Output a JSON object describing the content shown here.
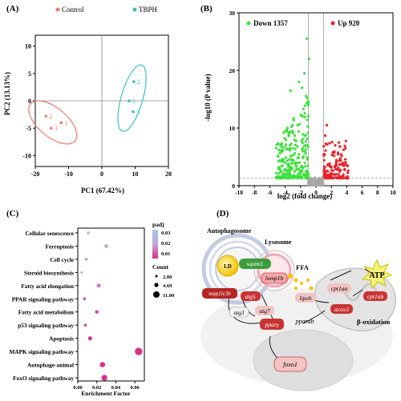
{
  "panels": {
    "a": "(A)",
    "b": "(B)",
    "c": "(C)",
    "d": "(D)"
  },
  "colors": {
    "control": "#f0796e",
    "tbph": "#3ebfbf",
    "down": "#3ce03c",
    "up": "#e8222a",
    "gray": "#a6a6a6"
  },
  "chart_data": [
    {
      "type": "scatter",
      "panel": "A",
      "xlabel": "PC1 (67.42%)",
      "ylabel": "PC2 (13.13%)",
      "xlim": [
        -20,
        20
      ],
      "ylim": [
        -12,
        12
      ],
      "xticks": [
        -20,
        -10,
        0,
        10,
        20
      ],
      "yticks": [
        -10,
        -5,
        0,
        5,
        10
      ],
      "legend_position": "top",
      "series": [
        {
          "name": "Control",
          "color": "#f0796e",
          "points": [
            {
              "label": "1",
              "x": -12.2,
              "y": -4.0
            },
            {
              "label": "2",
              "x": -16.8,
              "y": -2.8
            },
            {
              "label": "3",
              "x": -15.2,
              "y": -5.0
            }
          ]
        },
        {
          "name": "TBPH",
          "color": "#3ebfbf",
          "points": [
            {
              "label": "1",
              "x": 8.2,
              "y": 0.0
            },
            {
              "label": "2",
              "x": 9.6,
              "y": 3.5
            },
            {
              "label": "3",
              "x": 9.4,
              "y": -2.0
            }
          ]
        }
      ]
    },
    {
      "type": "scatter",
      "panel": "B",
      "xlabel": "log2 (fold change)",
      "ylabel": "-log10 (P value)",
      "xlim": [
        -10,
        10
      ],
      "ylim": [
        0,
        30
      ],
      "xticks": [
        -10,
        -8,
        -6,
        -4,
        -2,
        0,
        2,
        4,
        6,
        8,
        10
      ],
      "yticks": [
        0,
        10,
        20,
        30
      ],
      "legend": [
        {
          "name": "Down 1357",
          "color": "#3ce03c"
        },
        {
          "name": "Up 920",
          "color": "#e8222a"
        }
      ],
      "thresholds": {
        "fold_change": [
          -1,
          1
        ],
        "p_value_line": 1.3
      }
    },
    {
      "type": "scatter",
      "panel": "C",
      "xlabel": "Enrichment Factor",
      "xlim": [
        0,
        0.07
      ],
      "xticks": [
        "0.00",
        "0.02",
        "0.04",
        "0.06"
      ],
      "categories": [
        "Cellular senescence",
        "Ferroptosis",
        "Cell cycle",
        "Steroid biosynthesis",
        "Fatty acid elongation",
        "PPAR signaling pathway",
        "Fatty acid metabolism",
        "p53 signaling pathway",
        "Apoptosis",
        "MAPK signaling pathway",
        "Autophage-animal",
        "FoxO signaling pathway"
      ],
      "enrichment_factor": [
        0.011,
        0.03,
        0.009,
        0.004,
        0.022,
        0.007,
        0.02,
        0.008,
        0.013,
        0.064,
        0.026,
        0.028
      ],
      "padj": [
        0.028,
        0.023,
        0.016,
        0.02,
        0.012,
        0.008,
        0.006,
        0.005,
        0.003,
        0.002,
        0.001,
        0.001
      ],
      "count": [
        3,
        5,
        3,
        2,
        5,
        3,
        4,
        3,
        5,
        11,
        7,
        8
      ],
      "color_legend": {
        "title": "padj",
        "ticks": [
          "0.03",
          "0.02",
          "0.01"
        ]
      },
      "size_legend": {
        "title": "Count",
        "values": [
          "2.00",
          "4.69",
          "11.00"
        ]
      }
    }
  ],
  "legend_a": {
    "control": "Control",
    "tbph": "TBPH"
  },
  "diagram": {
    "autophagosome": "Autophagosome",
    "lysosome": "Lysosome",
    "ld": "LD",
    "ffa": "FFA",
    "atp": "ATP",
    "beta_oxidation": "β-oxidation",
    "genes": {
      "sqstm1": "sqstm1",
      "lamp1b": "lamp1b",
      "map1lc3b": "map1lc3b",
      "atg5": "atg5",
      "atg3": "atg3",
      "atg7": "atg7",
      "lipeb": "lipeb",
      "cpt1aa": "cpt1aa",
      "cpt1ab": "cpt1ab",
      "acox3": "acox3",
      "pparab": "pparab",
      "pparg": "pparγ",
      "foxo1": "foxo1"
    }
  }
}
